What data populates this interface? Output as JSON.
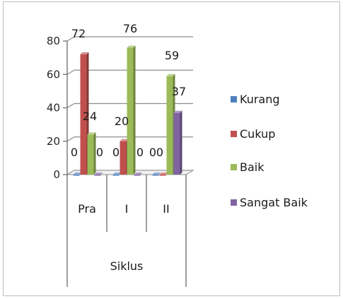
{
  "chart_data": {
    "type": "bar",
    "variant": "3d-clustered-column",
    "categories": [
      "Pra",
      "I",
      "II"
    ],
    "group_label": "Siklus",
    "series": [
      {
        "name": "Kurang",
        "color": "#4F81BD",
        "values": [
          0,
          0,
          0
        ]
      },
      {
        "name": "Cukup",
        "color": "#C0504D",
        "values": [
          72,
          20,
          0
        ]
      },
      {
        "name": "Baik",
        "color": "#9BBB59",
        "values": [
          24,
          76,
          59
        ]
      },
      {
        "name": "Sangat Baik",
        "color": "#8064A2",
        "values": [
          0,
          0,
          37
        ]
      }
    ],
    "y_ticks": [
      "0",
      "20",
      "40",
      "60",
      "80"
    ],
    "ylim": [
      0,
      80
    ],
    "grid": true,
    "legend_position": "right",
    "data_labels": [
      [
        "0",
        "72",
        "24",
        "0"
      ],
      [
        "0",
        "20",
        "76",
        "0"
      ],
      [
        "0",
        "0",
        "59",
        "37"
      ]
    ]
  }
}
